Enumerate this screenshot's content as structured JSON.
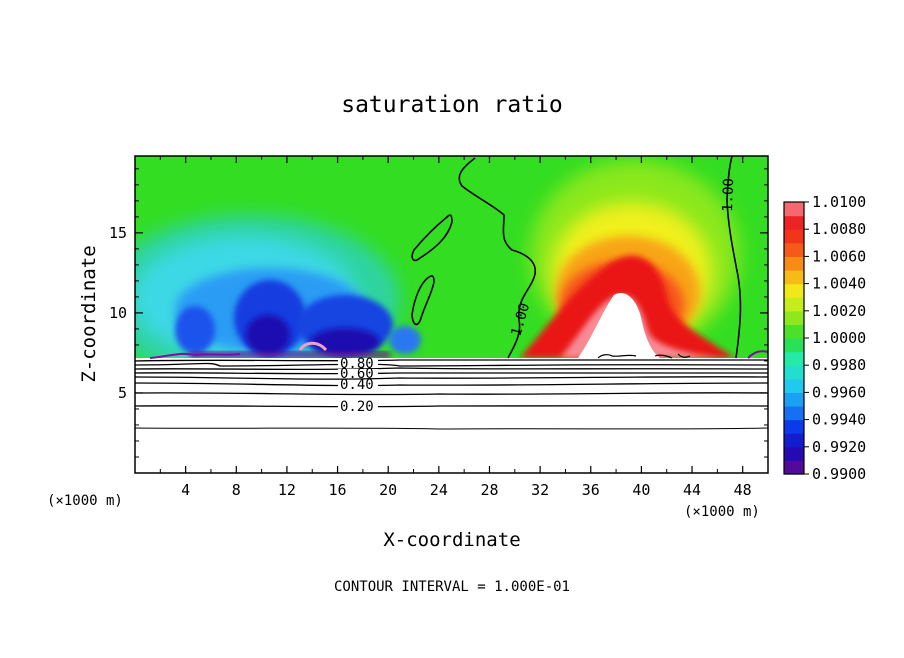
{
  "chart_data": {
    "type": "heatmap",
    "title": "saturation ratio",
    "xlabel": "X-coordinate",
    "ylabel": "Z-coordinate",
    "x_unit_left": "(×1000 m)",
    "x_unit_right": "(×1000 m)",
    "footer": "CONTOUR INTERVAL = 1.000E-01",
    "xlim": [
      0,
      50
    ],
    "ylim": [
      0,
      19.8
    ],
    "x_ticks": [
      4,
      8,
      12,
      16,
      20,
      24,
      28,
      32,
      36,
      40,
      44,
      48
    ],
    "y_ticks": [
      5,
      10,
      15
    ],
    "colorbar": {
      "ticks": [
        "1.0100",
        "1.0080",
        "1.0060",
        "1.0040",
        "1.0020",
        "1.0000",
        "0.9980",
        "0.9960",
        "0.9940",
        "0.9920",
        "0.9900"
      ],
      "range": [
        0.99,
        1.01
      ]
    },
    "contour_labels": [
      "0.80",
      "0.60",
      "0.40",
      "0.20",
      "1.00",
      "1.00"
    ],
    "cloud_base_z": 7.3,
    "lower_contour_levels": [
      0.1,
      0.2,
      0.3,
      0.4,
      0.5,
      0.6,
      0.7,
      0.8,
      0.9
    ],
    "features": {
      "dry_region_x": [
        4,
        21
      ],
      "supersaturated_plume_x": [
        30,
        48
      ],
      "plume_peak": {
        "x": 38,
        "z": 15.5,
        "value": 1.0065
      }
    }
  },
  "colors": {
    "background_field": "#33dd22",
    "cmap": [
      "#6a0a8c",
      "#1c0ab4",
      "#0a30e8",
      "#1a8cf6",
      "#22d0ee",
      "#22ecb4",
      "#2cdc30",
      "#9ae81c",
      "#f0f01a",
      "#f8a414",
      "#f6521c",
      "#ea1818",
      "#f88a94"
    ]
  }
}
